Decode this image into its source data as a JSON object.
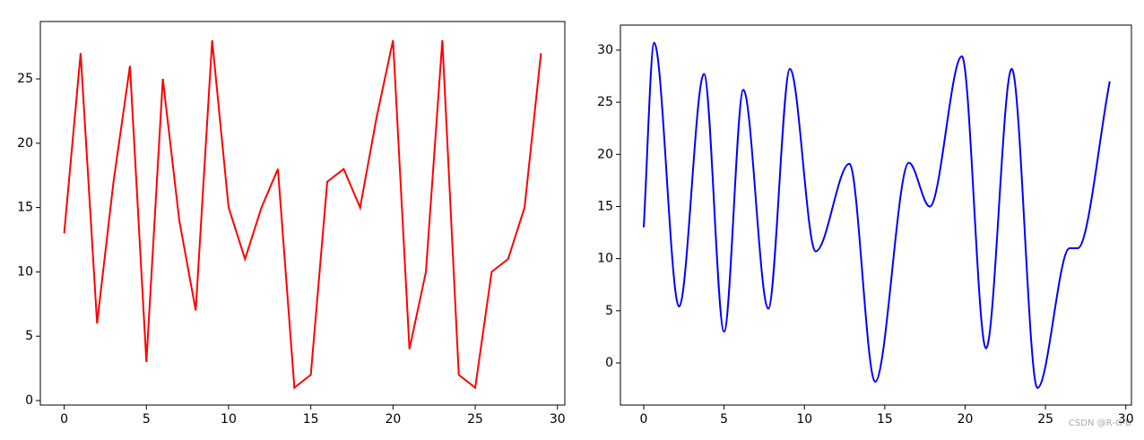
{
  "chart_data": [
    {
      "type": "line",
      "color": "#ff0000",
      "x": [
        0,
        1,
        2,
        3,
        4,
        5,
        6,
        7,
        8,
        9,
        10,
        11,
        12,
        13,
        14,
        15,
        16,
        17,
        18,
        19,
        20,
        21,
        22,
        23,
        24,
        25,
        26,
        27,
        28,
        29
      ],
      "values": [
        13,
        27,
        6,
        17,
        26,
        3,
        25,
        14,
        7,
        28,
        15,
        11,
        15,
        18,
        1,
        2,
        17,
        18,
        15,
        22,
        28,
        4,
        10,
        28,
        2,
        1,
        10,
        11,
        15,
        27
      ],
      "xlim": [
        -1.45,
        30.45
      ],
      "ylim": [
        -0.35,
        29.46
      ],
      "xticks": [
        0,
        5,
        10,
        15,
        20,
        25,
        30
      ],
      "yticks": [
        0,
        5,
        10,
        15,
        20,
        25
      ]
    },
    {
      "type": "smooth-line",
      "color": "#0000ff",
      "x": [
        0,
        0.65,
        2.2,
        3.75,
        5.0,
        6.2,
        7.75,
        9.1,
        10.7,
        12.8,
        14.4,
        16.5,
        17.8,
        19.8,
        21.3,
        22.9,
        24.5,
        26.5,
        27.0,
        29
      ],
      "values": [
        13,
        30.7,
        5.4,
        27.7,
        3.0,
        26.2,
        5.2,
        28.2,
        10.7,
        19.1,
        -1.8,
        19.2,
        15.0,
        29.4,
        1.4,
        28.2,
        -2.4,
        11.0,
        11.0,
        27
      ],
      "xlim": [
        -1.45,
        30.35
      ],
      "ylim": [
        -4.04,
        32.4
      ],
      "xticks": [
        0,
        5,
        10,
        15,
        20,
        25,
        30
      ],
      "yticks": [
        0,
        5,
        10,
        15,
        20,
        25,
        30
      ]
    }
  ],
  "watermark": "CSDN @R-G-B"
}
